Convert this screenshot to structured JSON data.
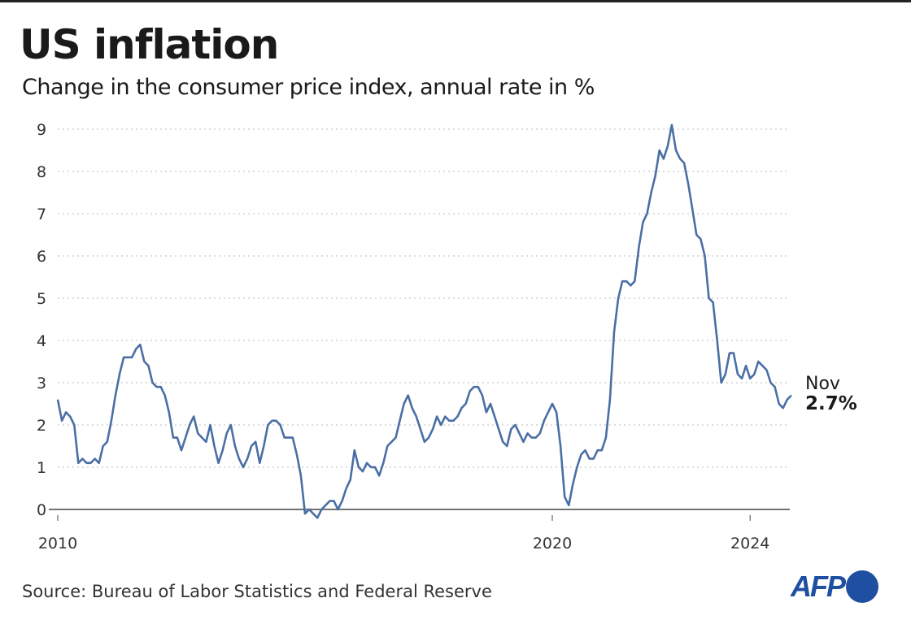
{
  "chart_data": {
    "type": "line",
    "title": "US inflation",
    "subtitle": "Change in the consumer price index, annual rate in %",
    "source": "Source: Bureau of Labor Statistics and Federal Reserve",
    "logo": "AFP",
    "xlabel": "",
    "ylabel": "",
    "x_ticks": [
      "2010",
      "2020",
      "2024"
    ],
    "y_ticks": [
      "0",
      "1",
      "2",
      "3",
      "4",
      "5",
      "6",
      "7",
      "8",
      "9"
    ],
    "ylim": [
      0,
      9
    ],
    "xlim": [
      "2010-01",
      "2024-11"
    ],
    "grid": "horizontal dotted",
    "line_color": "#4a6fa5",
    "series": [
      {
        "start": "2010-01",
        "frequency": "monthly",
        "values": [
          2.6,
          2.1,
          2.3,
          2.2,
          2.0,
          1.1,
          1.2,
          1.1,
          1.1,
          1.2,
          1.1,
          1.5,
          1.6,
          2.1,
          2.7,
          3.2,
          3.6,
          3.6,
          3.6,
          3.8,
          3.9,
          3.5,
          3.4,
          3.0,
          2.9,
          2.9,
          2.7,
          2.3,
          1.7,
          1.7,
          1.4,
          1.7,
          2.0,
          2.2,
          1.8,
          1.7,
          1.6,
          2.0,
          1.5,
          1.1,
          1.4,
          1.8,
          2.0,
          1.5,
          1.2,
          1.0,
          1.2,
          1.5,
          1.6,
          1.1,
          1.5,
          2.0,
          2.1,
          2.1,
          2.0,
          1.7,
          1.7,
          1.7,
          1.3,
          0.8,
          -0.1,
          0.0,
          -0.1,
          -0.2,
          0.0,
          0.1,
          0.2,
          0.2,
          0.0,
          0.2,
          0.5,
          0.7,
          1.4,
          1.0,
          0.9,
          1.1,
          1.0,
          1.0,
          0.8,
          1.1,
          1.5,
          1.6,
          1.7,
          2.1,
          2.5,
          2.7,
          2.4,
          2.2,
          1.9,
          1.6,
          1.7,
          1.9,
          2.2,
          2.0,
          2.2,
          2.1,
          2.1,
          2.2,
          2.4,
          2.5,
          2.8,
          2.9,
          2.9,
          2.7,
          2.3,
          2.5,
          2.2,
          1.9,
          1.6,
          1.5,
          1.9,
          2.0,
          1.8,
          1.6,
          1.8,
          1.7,
          1.7,
          1.8,
          2.1,
          2.3,
          2.5,
          2.3,
          1.5,
          0.3,
          0.1,
          0.6,
          1.0,
          1.3,
          1.4,
          1.2,
          1.2,
          1.4,
          1.4,
          1.7,
          2.6,
          4.2,
          5.0,
          5.4,
          5.4,
          5.3,
          5.4,
          6.2,
          6.8,
          7.0,
          7.5,
          7.9,
          8.5,
          8.3,
          8.6,
          9.1,
          8.5,
          8.3,
          8.2,
          7.7,
          7.1,
          6.5,
          6.4,
          6.0,
          5.0,
          4.9,
          4.0,
          3.0,
          3.2,
          3.7,
          3.7,
          3.2,
          3.1,
          3.4,
          3.1,
          3.2,
          3.5,
          3.4,
          3.3,
          3.0,
          2.9,
          2.5,
          2.4,
          2.6,
          2.7
        ]
      }
    ],
    "annotation": {
      "month": "Nov",
      "value": "2.7%"
    }
  }
}
